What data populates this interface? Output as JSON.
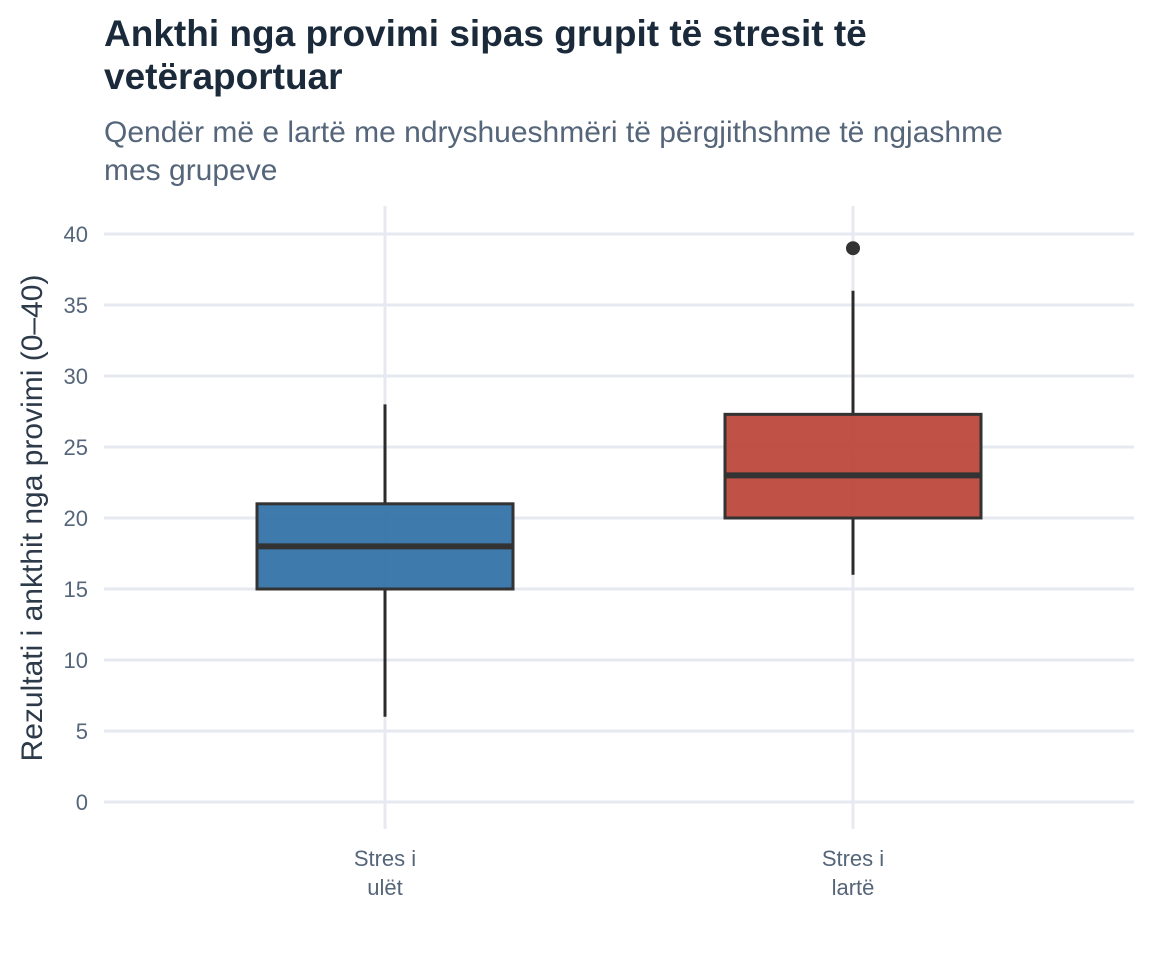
{
  "chart_data": {
    "type": "box",
    "title": "Ankthi nga provimi sipas grupit të stresit të vetëraportuar",
    "subtitle": "Qendër më e lartë me ndryshueshmëri të përgjithshme të ngjashme mes grupeve",
    "xlabel": "",
    "ylabel": "Rezultati i ankthit nga provimi (0–40)",
    "ylim": [
      0,
      42
    ],
    "yticks": [
      0,
      5,
      10,
      15,
      20,
      25,
      30,
      35,
      40
    ],
    "grid": true,
    "legend": "none",
    "categories": [
      [
        "Stres i",
        "ulët"
      ],
      [
        "Stres i",
        "lartë"
      ]
    ],
    "boxes": [
      {
        "whisker_low": 6,
        "q1": 15,
        "median": 18,
        "q3": 21,
        "whisker_high": 28,
        "outliers": [],
        "color": "#2f6fa6"
      },
      {
        "whisker_low": 16,
        "q1": 20,
        "median": 23,
        "q3": 27.3,
        "whisker_high": 36,
        "outliers": [
          39
        ],
        "color": "#bb4237"
      }
    ],
    "colors": {
      "grid": "#e6eaf0",
      "outline": "#333333",
      "outlier": "#333333"
    }
  }
}
